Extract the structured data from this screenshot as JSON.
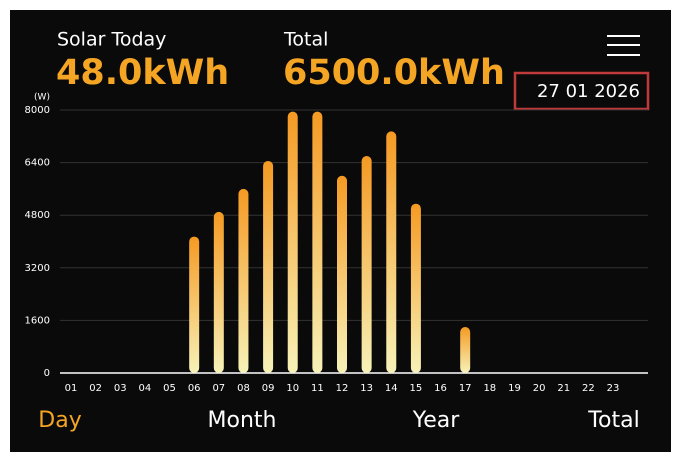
{
  "header": {
    "solar_label": "Solar Today",
    "solar_value": "48.0kWh",
    "total_label": "Total",
    "total_value": "6500.0kWh",
    "date": "27 01 2026"
  },
  "tabs": [
    "Day",
    "Month",
    "Year",
    "Total"
  ],
  "chart_data": {
    "type": "bar",
    "y_label": "(W)",
    "categories": [
      "01",
      "02",
      "03",
      "04",
      "05",
      "06",
      "07",
      "08",
      "09",
      "10",
      "11",
      "12",
      "13",
      "14",
      "15",
      "16",
      "17",
      "18",
      "19",
      "20",
      "21",
      "22",
      "23"
    ],
    "values": [
      0,
      0,
      0,
      0,
      0,
      4150,
      4900,
      5600,
      6450,
      7950,
      7950,
      6000,
      6600,
      7350,
      5150,
      0,
      1400,
      0,
      0,
      0,
      0,
      0,
      0
    ],
    "color": "#f59a23",
    "ylim": [
      0,
      8000
    ],
    "yticks": [
      0,
      1600,
      3200,
      4800,
      6400,
      8000
    ],
    "grid": true
  }
}
